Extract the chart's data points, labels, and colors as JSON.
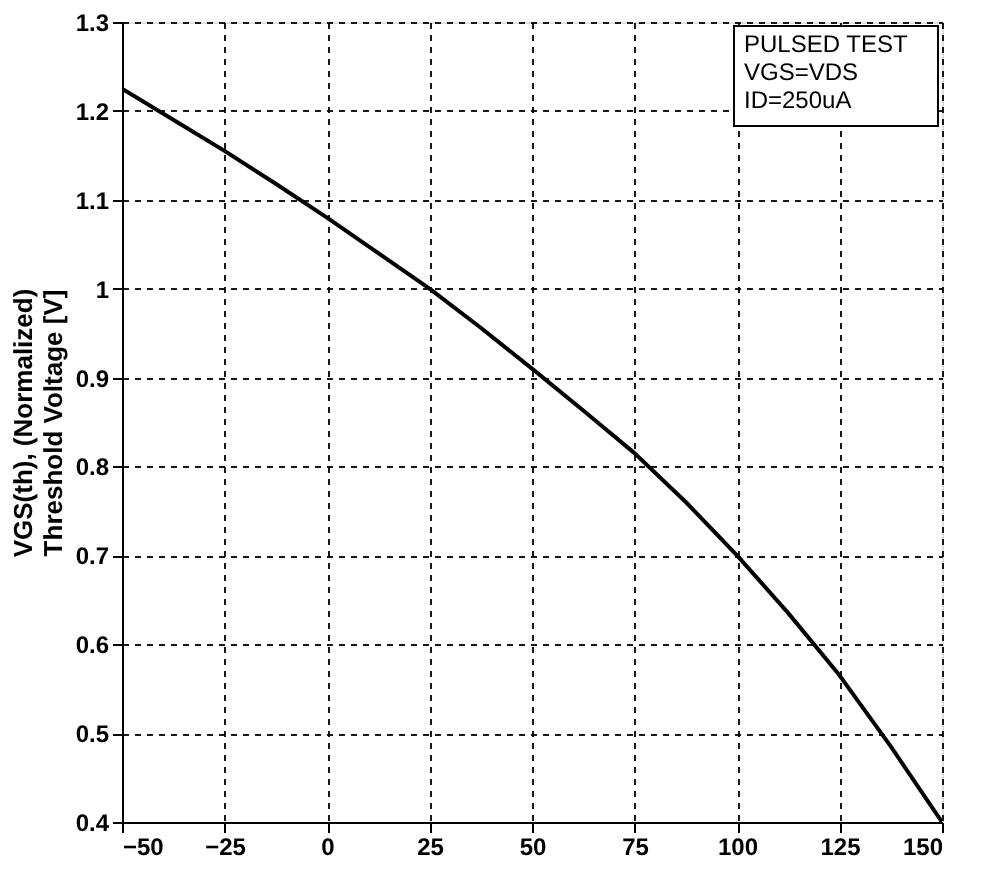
{
  "chart_data": {
    "type": "line",
    "ylabel": [
      "VGS(th), (Normalized)",
      "Threshold Voltage [V]"
    ],
    "annotations": [
      "PULSED TEST",
      "VGS=VDS",
      "ID=250uA"
    ],
    "x": [
      -50,
      -37.5,
      -25,
      -12.5,
      0,
      12.5,
      25,
      37.5,
      50,
      62.5,
      75,
      87.5,
      100,
      112.5,
      125,
      137.5,
      150
    ],
    "series": [
      {
        "color": "#000000",
        "values": [
          1.225,
          1.19,
          1.155,
          1.118,
          1.08,
          1.04,
          1.0,
          0.956,
          0.91,
          0.863,
          0.815,
          0.76,
          0.7,
          0.635,
          0.565,
          0.485,
          0.4
        ]
      }
    ],
    "xlim": [
      -50,
      150
    ],
    "xticks": [
      -50,
      -25,
      0,
      25,
      50,
      75,
      100,
      125,
      150
    ],
    "ylim": [
      0.4,
      1.3
    ],
    "yticks": [
      0.4,
      0.5,
      0.6,
      0.7,
      0.8,
      0.9,
      {
        "value": 1,
        "label": "1"
      },
      1.1,
      1.2,
      1.3
    ],
    "grid": true,
    "line_style": "solid",
    "marker": "none"
  }
}
